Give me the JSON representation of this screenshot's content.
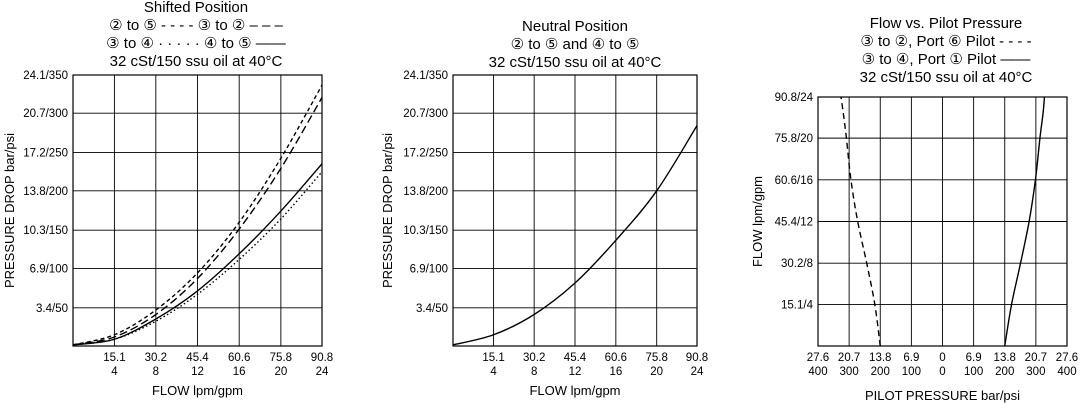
{
  "chart_data": [
    {
      "type": "line",
      "title_lines": [
        "Shifted Position",
        "② to ⑤ - - - -       ③ to ② – – –",
        "③ to ④ · · · · ·    ④ to ⑤ ——",
        "32 cSt/150 ssu oil at 40°C"
      ],
      "xlabel": "FLOW lpm/gpm",
      "ylabel": "PRESSURE DROP bar/psi",
      "xlim": [
        0,
        90.8
      ],
      "ylim": [
        0,
        24.1
      ],
      "x_ticks": [
        {
          "v": 15.1,
          "top": "15.1",
          "bottom": "4"
        },
        {
          "v": 30.2,
          "top": "30.2",
          "bottom": "8"
        },
        {
          "v": 45.4,
          "top": "45.4",
          "bottom": "12"
        },
        {
          "v": 60.6,
          "top": "60.6",
          "bottom": "16"
        },
        {
          "v": 75.8,
          "top": "75.8",
          "bottom": "20"
        },
        {
          "v": 90.8,
          "top": "90.8",
          "bottom": "24"
        }
      ],
      "y_ticks": [
        {
          "v": 3.4,
          "label": "3.4/50"
        },
        {
          "v": 6.9,
          "label": "6.9/100"
        },
        {
          "v": 10.3,
          "label": "10.3/150"
        },
        {
          "v": 13.8,
          "label": "13.8/200"
        },
        {
          "v": 17.2,
          "label": "17.2/250"
        },
        {
          "v": 20.7,
          "label": "20.7/300"
        },
        {
          "v": 24.1,
          "label": "24.1/350"
        }
      ],
      "grid": true,
      "series": [
        {
          "name": "② to ⑤",
          "dash": "4,3",
          "x": [
            0,
            15.1,
            30.2,
            45.4,
            60.6,
            75.8,
            90.8
          ],
          "y": [
            0.1,
            1.0,
            3.2,
            6.5,
            11.0,
            16.7,
            23.2
          ]
        },
        {
          "name": "③ to ②",
          "dash": "8,4",
          "x": [
            0,
            15.1,
            30.2,
            45.4,
            60.6,
            75.8,
            90.8
          ],
          "y": [
            0.1,
            0.8,
            2.8,
            6.0,
            10.4,
            15.8,
            22.1
          ]
        },
        {
          "name": "③ to ④",
          "dash": "1.5,2.5",
          "x": [
            0,
            15.1,
            30.2,
            45.4,
            60.6,
            75.8,
            90.8
          ],
          "y": [
            0.1,
            0.6,
            2.2,
            4.6,
            7.7,
            11.3,
            15.5
          ]
        },
        {
          "name": "④ to ⑤",
          "dash": "",
          "x": [
            0,
            15.1,
            30.2,
            45.4,
            60.6,
            75.8,
            90.8
          ],
          "y": [
            0.1,
            0.6,
            2.4,
            4.9,
            8.2,
            12.0,
            16.2
          ]
        }
      ]
    },
    {
      "type": "line",
      "title_lines": [
        "Neutral Position",
        "② to ⑤ and ④ to ⑤",
        "32 cSt/150 ssu oil at 40°C"
      ],
      "xlabel": "FLOW lpm/gpm",
      "ylabel": "PRESSURE DROP bar/psi",
      "xlim": [
        0,
        90.8
      ],
      "ylim": [
        0,
        24.1
      ],
      "x_ticks": [
        {
          "v": 15.1,
          "top": "15.1",
          "bottom": "4"
        },
        {
          "v": 30.2,
          "top": "30.2",
          "bottom": "8"
        },
        {
          "v": 45.4,
          "top": "45.4",
          "bottom": "12"
        },
        {
          "v": 60.6,
          "top": "60.6",
          "bottom": "16"
        },
        {
          "v": 75.8,
          "top": "75.8",
          "bottom": "20"
        },
        {
          "v": 90.8,
          "top": "90.8",
          "bottom": "24"
        }
      ],
      "y_ticks": [
        {
          "v": 3.4,
          "label": "3.4/50"
        },
        {
          "v": 6.9,
          "label": "6.9/100"
        },
        {
          "v": 10.3,
          "label": "10.3/150"
        },
        {
          "v": 13.8,
          "label": "13.8/200"
        },
        {
          "v": 17.2,
          "label": "17.2/250"
        },
        {
          "v": 20.7,
          "label": "20.7/300"
        },
        {
          "v": 24.1,
          "label": "24.1/350"
        }
      ],
      "grid": true,
      "series": [
        {
          "name": "② to ⑤ and ④ to ⑤",
          "dash": "",
          "x": [
            0,
            15.1,
            30.2,
            45.4,
            60.6,
            75.8,
            90.8
          ],
          "y": [
            0.1,
            1.0,
            2.8,
            5.6,
            9.4,
            13.8,
            19.6
          ]
        }
      ]
    },
    {
      "type": "line",
      "title_lines": [
        "Flow vs. Pilot Pressure",
        "③ to ②, Port ⑥ Pilot - - - -",
        "③ to ④, Port ① Pilot ——",
        "32 cSt/150 ssu oil at 40°C"
      ],
      "xlabel": "PILOT PRESSURE bar/psi",
      "ylabel": "FLOW lpm/gpm",
      "xlim": [
        -27.6,
        27.6
      ],
      "ylim": [
        0,
        90.8
      ],
      "x_ticks": [
        {
          "v": -27.6,
          "top": "27.6",
          "bottom": "400"
        },
        {
          "v": -20.7,
          "top": "20.7",
          "bottom": "300"
        },
        {
          "v": -13.8,
          "top": "13.8",
          "bottom": "200"
        },
        {
          "v": -6.9,
          "top": "6.9",
          "bottom": "100"
        },
        {
          "v": 0,
          "top": "0",
          "bottom": "0"
        },
        {
          "v": 6.9,
          "top": "6.9",
          "bottom": "100"
        },
        {
          "v": 13.8,
          "top": "13.8",
          "bottom": "200"
        },
        {
          "v": 20.7,
          "top": "20.7",
          "bottom": "300"
        },
        {
          "v": 27.6,
          "top": "27.6",
          "bottom": "400"
        }
      ],
      "y_ticks": [
        {
          "v": 15.1,
          "label": "15.1/4"
        },
        {
          "v": 30.2,
          "label": "30.2/8"
        },
        {
          "v": 45.4,
          "label": "45.4/12"
        },
        {
          "v": 60.6,
          "label": "60.6/16"
        },
        {
          "v": 75.8,
          "label": "75.8/20"
        },
        {
          "v": 90.8,
          "label": "90.8/24"
        }
      ],
      "grid": true,
      "series": [
        {
          "name": "③ to ②, Port ⑥ Pilot",
          "dash": "6,4",
          "x": [
            -13.8,
            -15.0,
            -16.8,
            -18.8,
            -20.3,
            -21.3,
            -22.0,
            -22.5
          ],
          "y": [
            0,
            15.1,
            30.2,
            45.4,
            60.6,
            75.8,
            85.0,
            90.8
          ]
        },
        {
          "name": "③ to ④, Port ① Pilot",
          "dash": "",
          "x": [
            13.8,
            15.3,
            17.3,
            19.2,
            20.6,
            21.6,
            22.3,
            22.6
          ],
          "y": [
            0,
            15.1,
            30.2,
            45.4,
            60.6,
            75.8,
            85.0,
            90.8
          ]
        }
      ]
    }
  ]
}
